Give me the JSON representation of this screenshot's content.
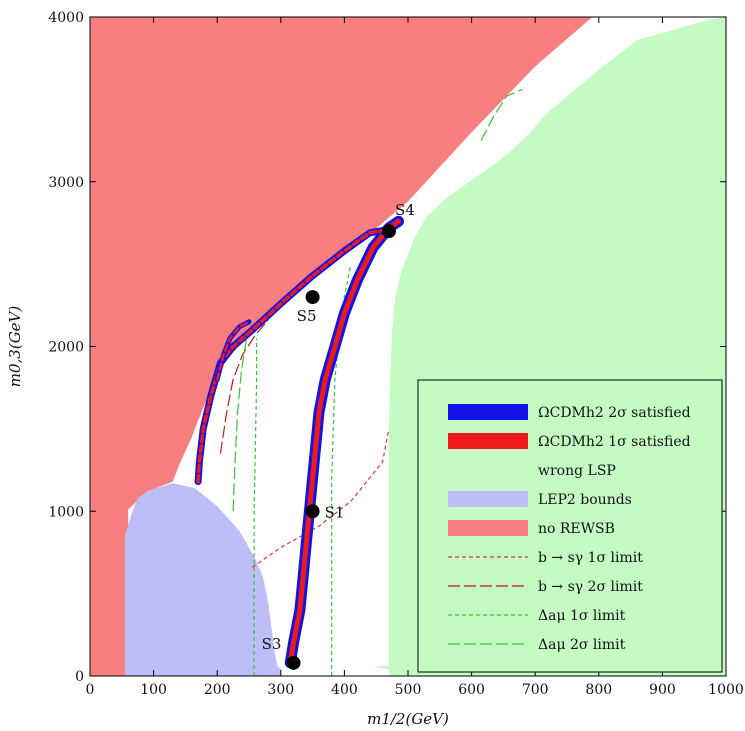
{
  "chart_data": {
    "type": "scatter",
    "xlabel": "m1/2(GeV)",
    "ylabel": "m0,3(GeV)",
    "xlim": [
      0,
      1000
    ],
    "ylim": [
      0,
      4000
    ],
    "x_ticks": [
      "0",
      "100",
      "200",
      "300",
      "400",
      "500",
      "600",
      "700",
      "800",
      "900",
      "1000"
    ],
    "y_ticks": [
      "0",
      "1000",
      "2000",
      "3000",
      "4000"
    ],
    "regions": {
      "no_rewsb": {
        "color": "#f77f7f",
        "polygon": [
          [
            0,
            0
          ],
          [
            0,
            4000
          ],
          [
            790,
            4000
          ],
          [
            700,
            3700
          ],
          [
            600,
            3300
          ],
          [
            500,
            2880
          ],
          [
            420,
            2620
          ],
          [
            360,
            2460
          ],
          [
            300,
            2280
          ],
          [
            250,
            2070
          ],
          [
            210,
            1900
          ],
          [
            180,
            1650
          ],
          [
            160,
            1450
          ],
          [
            140,
            1280
          ],
          [
            130,
            1180
          ],
          [
            90,
            1120
          ],
          [
            60,
            1010
          ],
          [
            60,
            40
          ],
          [
            100,
            40
          ],
          [
            100,
            0
          ]
        ]
      },
      "wrong_lsp": {
        "color": "#c3fbc3",
        "polygon": [
          [
            470,
            0
          ],
          [
            1000,
            0
          ],
          [
            1000,
            4000
          ],
          [
            970,
            3980
          ],
          [
            860,
            3860
          ],
          [
            800,
            3680
          ],
          [
            760,
            3550
          ],
          [
            720,
            3420
          ],
          [
            690,
            3290
          ],
          [
            660,
            3180
          ],
          [
            630,
            3090
          ],
          [
            600,
            3010
          ],
          [
            560,
            2900
          ],
          [
            530,
            2790
          ],
          [
            510,
            2660
          ],
          [
            490,
            2460
          ],
          [
            480,
            2300
          ],
          [
            475,
            2100
          ],
          [
            472,
            1800
          ],
          [
            470,
            1500
          ],
          [
            470,
            1100
          ],
          [
            470,
            400
          ],
          [
            470,
            60
          ],
          [
            445,
            60
          ],
          [
            470,
            40
          ]
        ]
      },
      "lep2": {
        "color": "#bdbdf7",
        "polygon": [
          [
            55,
            0
          ],
          [
            55,
            850
          ],
          [
            65,
            980
          ],
          [
            75,
            1080
          ],
          [
            95,
            1130
          ],
          [
            130,
            1170
          ],
          [
            165,
            1140
          ],
          [
            200,
            1030
          ],
          [
            235,
            880
          ],
          [
            260,
            710
          ],
          [
            272,
            600
          ],
          [
            280,
            450
          ],
          [
            285,
            300
          ],
          [
            290,
            150
          ],
          [
            295,
            60
          ],
          [
            300,
            40
          ],
          [
            300,
            0
          ]
        ]
      }
    },
    "contours": {
      "bsg_1sigma": {
        "color": "#d43a3a",
        "dash": "4,3",
        "points": [
          [
            255,
            660
          ],
          [
            300,
            780
          ],
          [
            360,
            910
          ],
          [
            410,
            1060
          ],
          [
            460,
            1300
          ],
          [
            470,
            1500
          ]
        ]
      },
      "bsg_2sigma": {
        "color": "#b81e1e",
        "dash": "12,4",
        "points": [
          [
            205,
            1350
          ],
          [
            215,
            1600
          ],
          [
            225,
            1800
          ],
          [
            240,
            1950
          ],
          [
            260,
            2070
          ],
          [
            280,
            2160
          ]
        ]
      },
      "dam_1sigma_a": {
        "color": "#38c238",
        "dash": "4,3",
        "points": [
          [
            258,
            0
          ],
          [
            258,
            1000
          ],
          [
            260,
            1400
          ],
          [
            262,
            1800
          ],
          [
            262,
            2050
          ]
        ]
      },
      "dam_1sigma_b": {
        "color": "#38c238",
        "dash": "4,3",
        "points": [
          [
            380,
            0
          ],
          [
            380,
            500
          ],
          [
            380,
            1200
          ],
          [
            385,
            1800
          ],
          [
            395,
            2200
          ],
          [
            410,
            2500
          ]
        ]
      },
      "dam_2sigma_a": {
        "color": "#38c238",
        "dash": "12,4",
        "points": [
          [
            225,
            1000
          ],
          [
            228,
            1300
          ],
          [
            232,
            1600
          ],
          [
            238,
            1850
          ],
          [
            246,
            2050
          ]
        ]
      },
      "dam_2sigma_b": {
        "color": "#38c238",
        "dash": "12,4",
        "points": [
          [
            615,
            3250
          ],
          [
            635,
            3400
          ],
          [
            655,
            3520
          ],
          [
            680,
            3560
          ]
        ]
      }
    },
    "dm_band": {
      "blue_color": "#1313e8",
      "red_color": "#ee1a1a",
      "right_branch": [
        [
          315,
          80
        ],
        [
          320,
          200
        ],
        [
          330,
          400
        ],
        [
          335,
          600
        ],
        [
          340,
          800
        ],
        [
          345,
          1000
        ],
        [
          350,
          1200
        ],
        [
          355,
          1400
        ],
        [
          360,
          1600
        ],
        [
          370,
          1800
        ],
        [
          385,
          2000
        ],
        [
          400,
          2200
        ],
        [
          420,
          2400
        ],
        [
          445,
          2600
        ],
        [
          470,
          2720
        ],
        [
          485,
          2760
        ]
      ],
      "upper_branch": [
        [
          170,
          1180
        ],
        [
          172,
          1300
        ],
        [
          178,
          1500
        ],
        [
          190,
          1700
        ],
        [
          205,
          1900
        ],
        [
          225,
          2000
        ],
        [
          255,
          2100
        ],
        [
          300,
          2260
        ],
        [
          350,
          2430
        ],
        [
          400,
          2580
        ],
        [
          440,
          2690
        ],
        [
          470,
          2710
        ]
      ],
      "upper_tail": [
        [
          200,
          1800
        ],
        [
          210,
          1950
        ],
        [
          220,
          2050
        ],
        [
          235,
          2120
        ],
        [
          250,
          2150
        ]
      ]
    },
    "benchmarks": [
      {
        "label": "S1",
        "x": 350,
        "y": 1000
      },
      {
        "label": "S3",
        "x": 320,
        "y": 80
      },
      {
        "label": "S4",
        "x": 470,
        "y": 2700
      },
      {
        "label": "S5",
        "x": 350,
        "y": 2300
      }
    ],
    "legend": {
      "placement": "bottom-right",
      "entries": [
        {
          "label": "ΩCDMh2 2σ satisfied",
          "kind": "band",
          "color": "#1313e8"
        },
        {
          "label": "ΩCDMh2 1σ satisfied",
          "kind": "band",
          "color": "#ee1a1a"
        },
        {
          "label": "wrong LSP",
          "kind": "none",
          "color": "#c3fbc3"
        },
        {
          "label": "LEP2 bounds",
          "kind": "band",
          "color": "#bdbdf7"
        },
        {
          "label": "no REWSB",
          "kind": "band",
          "color": "#f77f7f"
        },
        {
          "label": "b → sγ 1σ limit",
          "kind": "line",
          "color": "#d43a3a",
          "dash": "4,3"
        },
        {
          "label": "b → sγ 2σ limit",
          "kind": "line",
          "color": "#b81e1e",
          "dash": "12,4"
        },
        {
          "label": "Δaμ 1σ limit",
          "kind": "line",
          "color": "#38c238",
          "dash": "4,3"
        },
        {
          "label": "Δaμ 2σ limit",
          "kind": "line",
          "color": "#38c238",
          "dash": "12,4"
        }
      ]
    }
  }
}
